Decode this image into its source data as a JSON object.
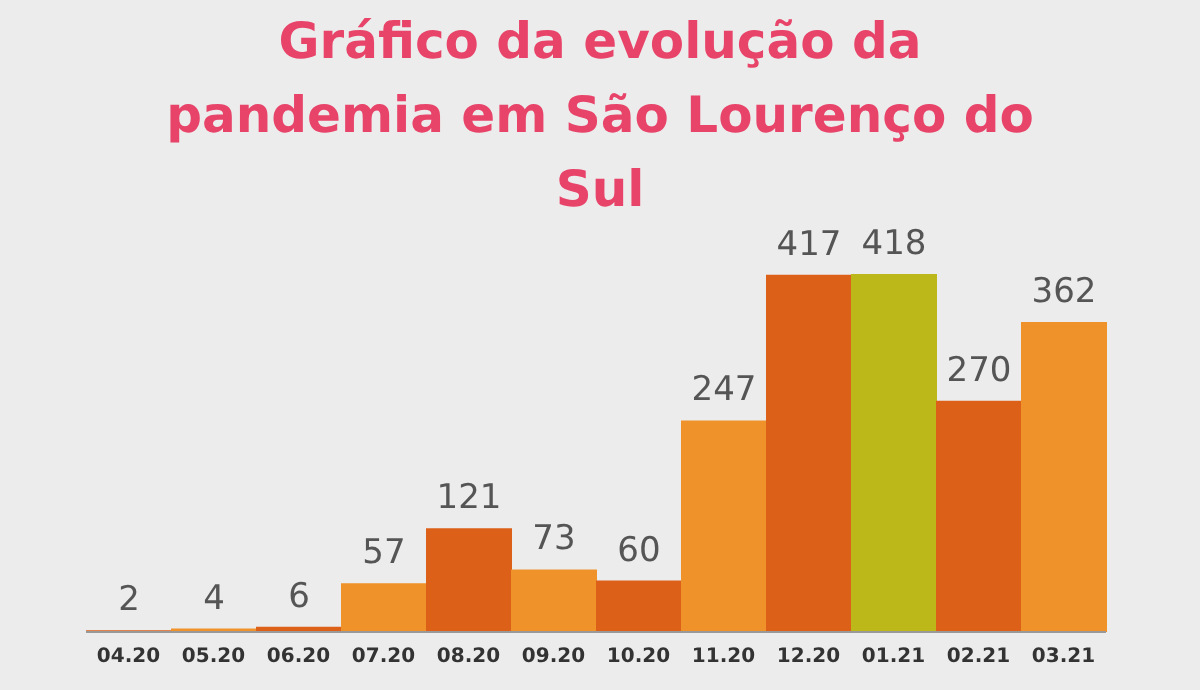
{
  "chart_data": {
    "type": "bar",
    "title": "Gráfico da evolução da pandemia em São Lourenço do Sul",
    "categories": [
      "04.20",
      "05.20",
      "06.20",
      "07.20",
      "08.20",
      "09.20",
      "10.20",
      "11.20",
      "12.20",
      "01.21",
      "02.21",
      "03.21"
    ],
    "values": [
      2,
      4,
      6,
      57,
      121,
      73,
      60,
      247,
      417,
      418,
      270,
      362
    ],
    "colors": [
      "#dc6018",
      "#f0922a",
      "#dc6018",
      "#f0922a",
      "#dc6018",
      "#f0922a",
      "#dc6018",
      "#f0922a",
      "#dc6018",
      "#bdb81a",
      "#dc6018",
      "#f0922a"
    ],
    "data_labels": true,
    "grid": false,
    "legend": false
  }
}
